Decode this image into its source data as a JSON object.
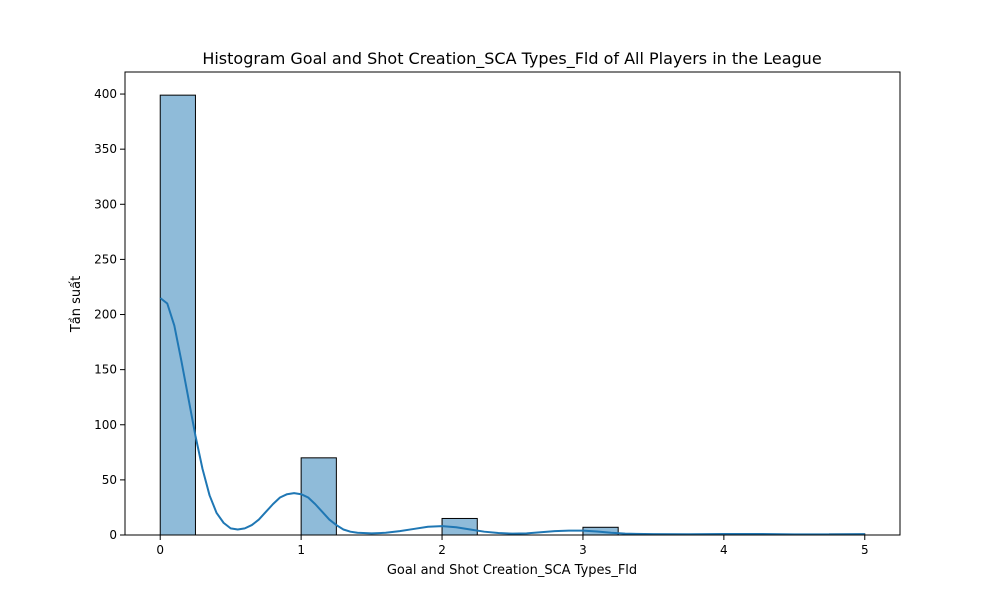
{
  "chart_data": {
    "type": "bar",
    "title": "Histogram Goal and Shot Creation_SCA Types_Fld of All Players in the League",
    "xlabel": "Goal and Shot Creation_SCA Types_Fld",
    "ylabel": "Tần suất",
    "xlim": [
      -0.25,
      5.25
    ],
    "ylim": [
      0,
      420
    ],
    "xticks": [
      0,
      1,
      2,
      3,
      4,
      5
    ],
    "yticks": [
      0,
      50,
      100,
      150,
      200,
      250,
      300,
      350,
      400
    ],
    "bin_width": 0.25,
    "bins": [
      {
        "x0": 0.0,
        "x1": 0.25,
        "value": 399
      },
      {
        "x0": 1.0,
        "x1": 1.25,
        "value": 70
      },
      {
        "x0": 2.0,
        "x1": 2.25,
        "value": 15
      },
      {
        "x0": 3.0,
        "x1": 3.25,
        "value": 7
      },
      {
        "x0": 4.75,
        "x1": 5.0,
        "value": 1
      }
    ],
    "kde": {
      "x": [
        0,
        0.05,
        0.1,
        0.15,
        0.2,
        0.25,
        0.3,
        0.35,
        0.4,
        0.45,
        0.5,
        0.55,
        0.6,
        0.65,
        0.7,
        0.75,
        0.8,
        0.85,
        0.9,
        0.95,
        1.0,
        1.05,
        1.1,
        1.15,
        1.2,
        1.25,
        1.3,
        1.35,
        1.4,
        1.5,
        1.6,
        1.7,
        1.8,
        1.9,
        2.0,
        2.1,
        2.2,
        2.3,
        2.4,
        2.5,
        2.6,
        2.7,
        2.8,
        2.9,
        3.0,
        3.1,
        3.2,
        3.3,
        3.5,
        3.75,
        4.0,
        4.25,
        4.5,
        4.75,
        5.0
      ],
      "y": [
        215,
        210,
        190,
        158,
        124,
        90,
        60,
        36,
        20,
        11,
        6,
        5,
        6,
        9,
        14,
        21,
        28,
        34,
        37,
        38,
        37,
        34,
        28,
        21,
        14,
        9,
        5,
        3,
        2,
        1.5,
        2,
        3.5,
        5.5,
        7.5,
        8,
        7,
        5,
        3,
        1.8,
        1.2,
        1.5,
        2.5,
        3.5,
        4,
        4,
        3.2,
        2,
        1.2,
        0.8,
        0.7,
        0.9,
        0.9,
        0.6,
        0.6,
        0.8
      ]
    },
    "bar_color": "#8fbbd9",
    "line_color": "#1f77b4",
    "grid": false,
    "legend": "none"
  }
}
